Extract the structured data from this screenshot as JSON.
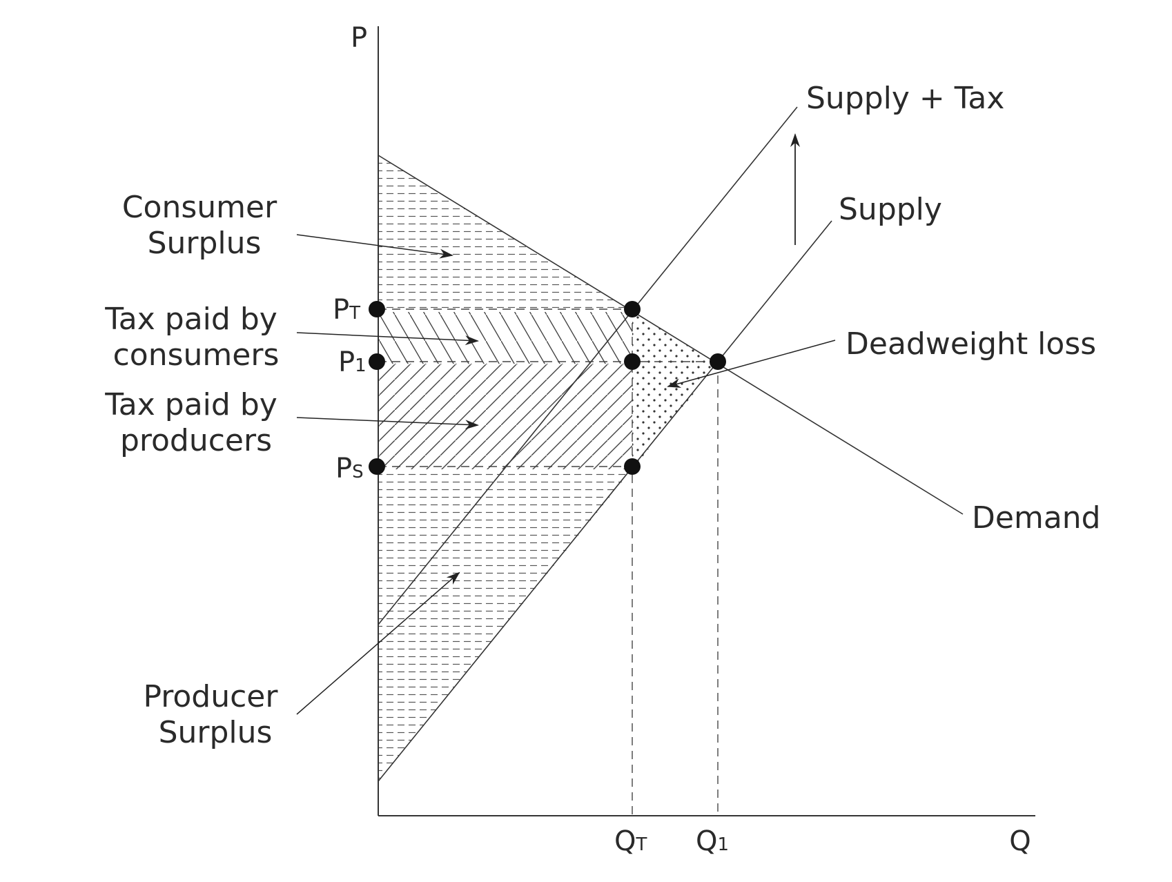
{
  "axes": {
    "y_label": "P",
    "x_label": "Q"
  },
  "curves": {
    "supply_tax": "Supply + Tax",
    "supply": "Supply",
    "demand": "Demand"
  },
  "price_ticks": {
    "pt": {
      "main": "P",
      "sub": "T"
    },
    "p1": {
      "main": "P",
      "sub": "1"
    },
    "ps": {
      "main": "P",
      "sub": "S"
    }
  },
  "quantity_ticks": {
    "qt": {
      "main": "Q",
      "sub": "T"
    },
    "q1": {
      "main": "Q",
      "sub": "1"
    }
  },
  "annotations": {
    "consumer_surplus": [
      "Consumer",
      "Surplus"
    ],
    "tax_consumers": [
      "Tax paid by",
      "consumers"
    ],
    "tax_producers": [
      "Tax paid by",
      "producers"
    ],
    "producer_surplus": [
      "Producer",
      "Surplus"
    ],
    "deadweight_loss": "Deadweight loss"
  },
  "colors": {
    "line": "#333333",
    "text": "#2a2a2a",
    "background": "#ffffff"
  }
}
